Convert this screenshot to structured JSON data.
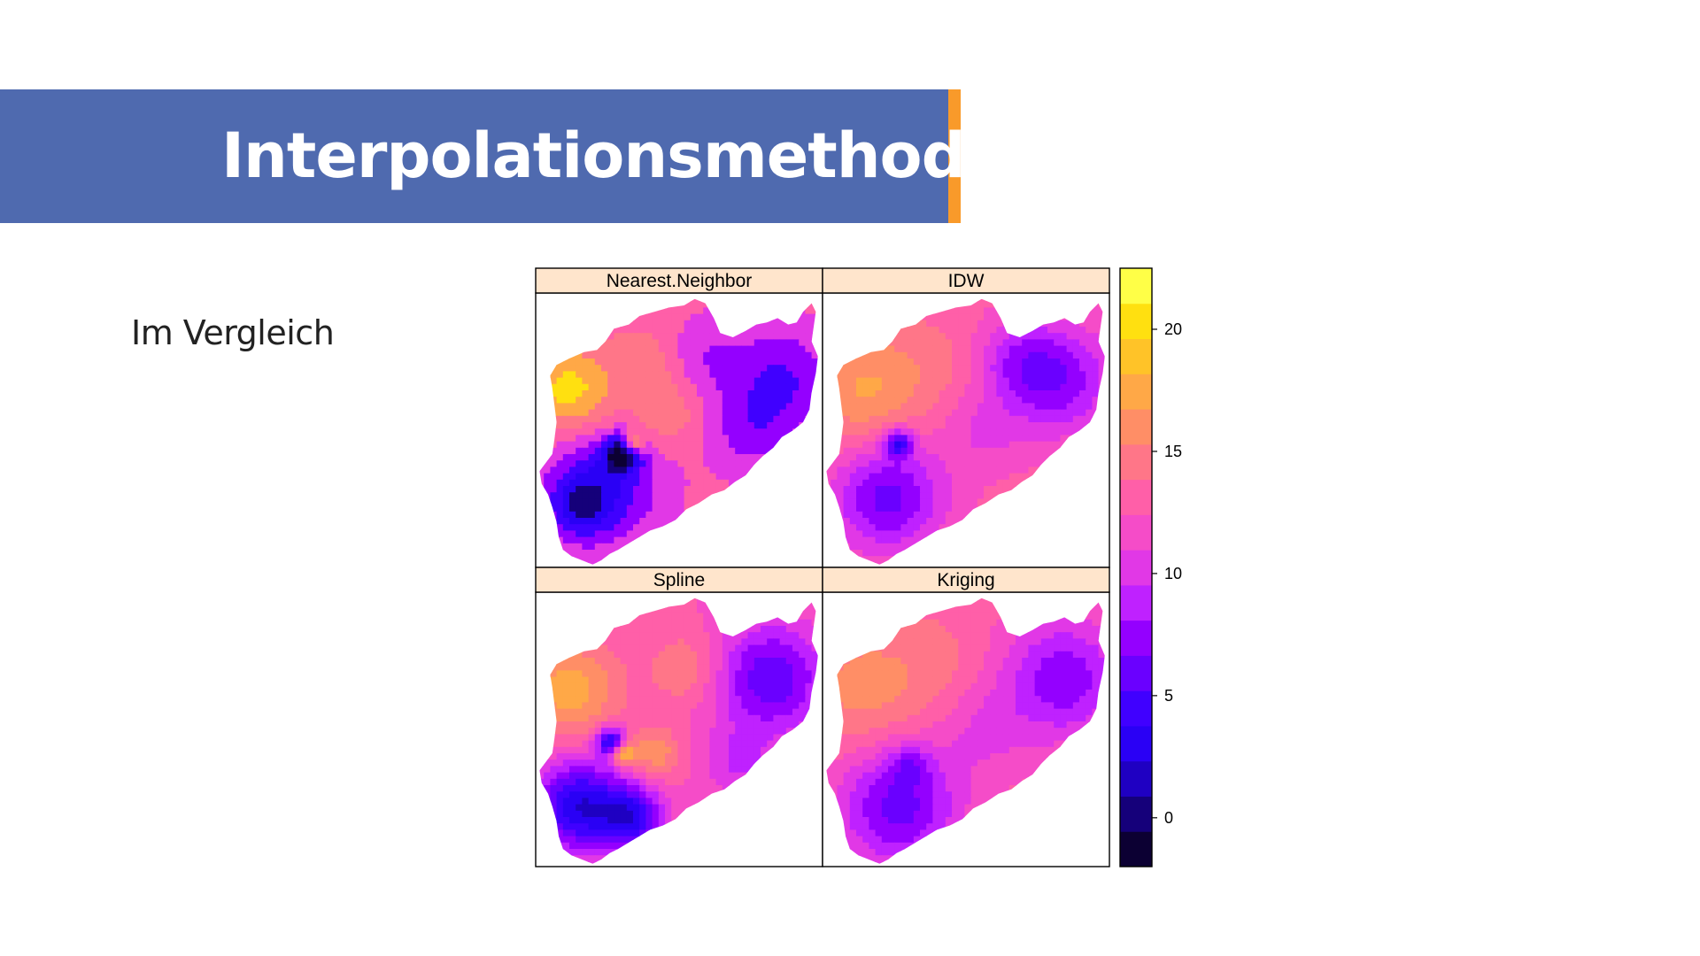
{
  "slide": {
    "title": "Interpolationsmethoden",
    "subtitle": "Im Vergleich",
    "colors": {
      "title_bar": "#4f6aaf",
      "accent": "#f99a2a",
      "title_text": "#ffffff"
    }
  },
  "figure": {
    "panels": [
      {
        "id": "nearest-neighbor",
        "label": "Nearest.Neighbor"
      },
      {
        "id": "idw",
        "label": "IDW"
      },
      {
        "id": "spline",
        "label": "Spline"
      },
      {
        "id": "kriging",
        "label": "Kriging"
      }
    ],
    "strip_color": "#ffe5cc",
    "colorkey": {
      "range": [
        -2,
        22.5
      ],
      "ticks": [
        "0",
        "5",
        "10",
        "15",
        "20"
      ],
      "tick_values": [
        0,
        5,
        10,
        15,
        20
      ],
      "band_count": 16,
      "palette": [
        "#0c0033",
        "#15007a",
        "#1f00c2",
        "#2a00f5",
        "#4000ff",
        "#6a00ff",
        "#9400ff",
        "#bf21ff",
        "#e138e6",
        "#f54cc8",
        "#ff5fa8",
        "#ff7688",
        "#ff8e66",
        "#ffa847",
        "#ffc328",
        "#ffe010",
        "#ffff47"
      ]
    }
  }
}
